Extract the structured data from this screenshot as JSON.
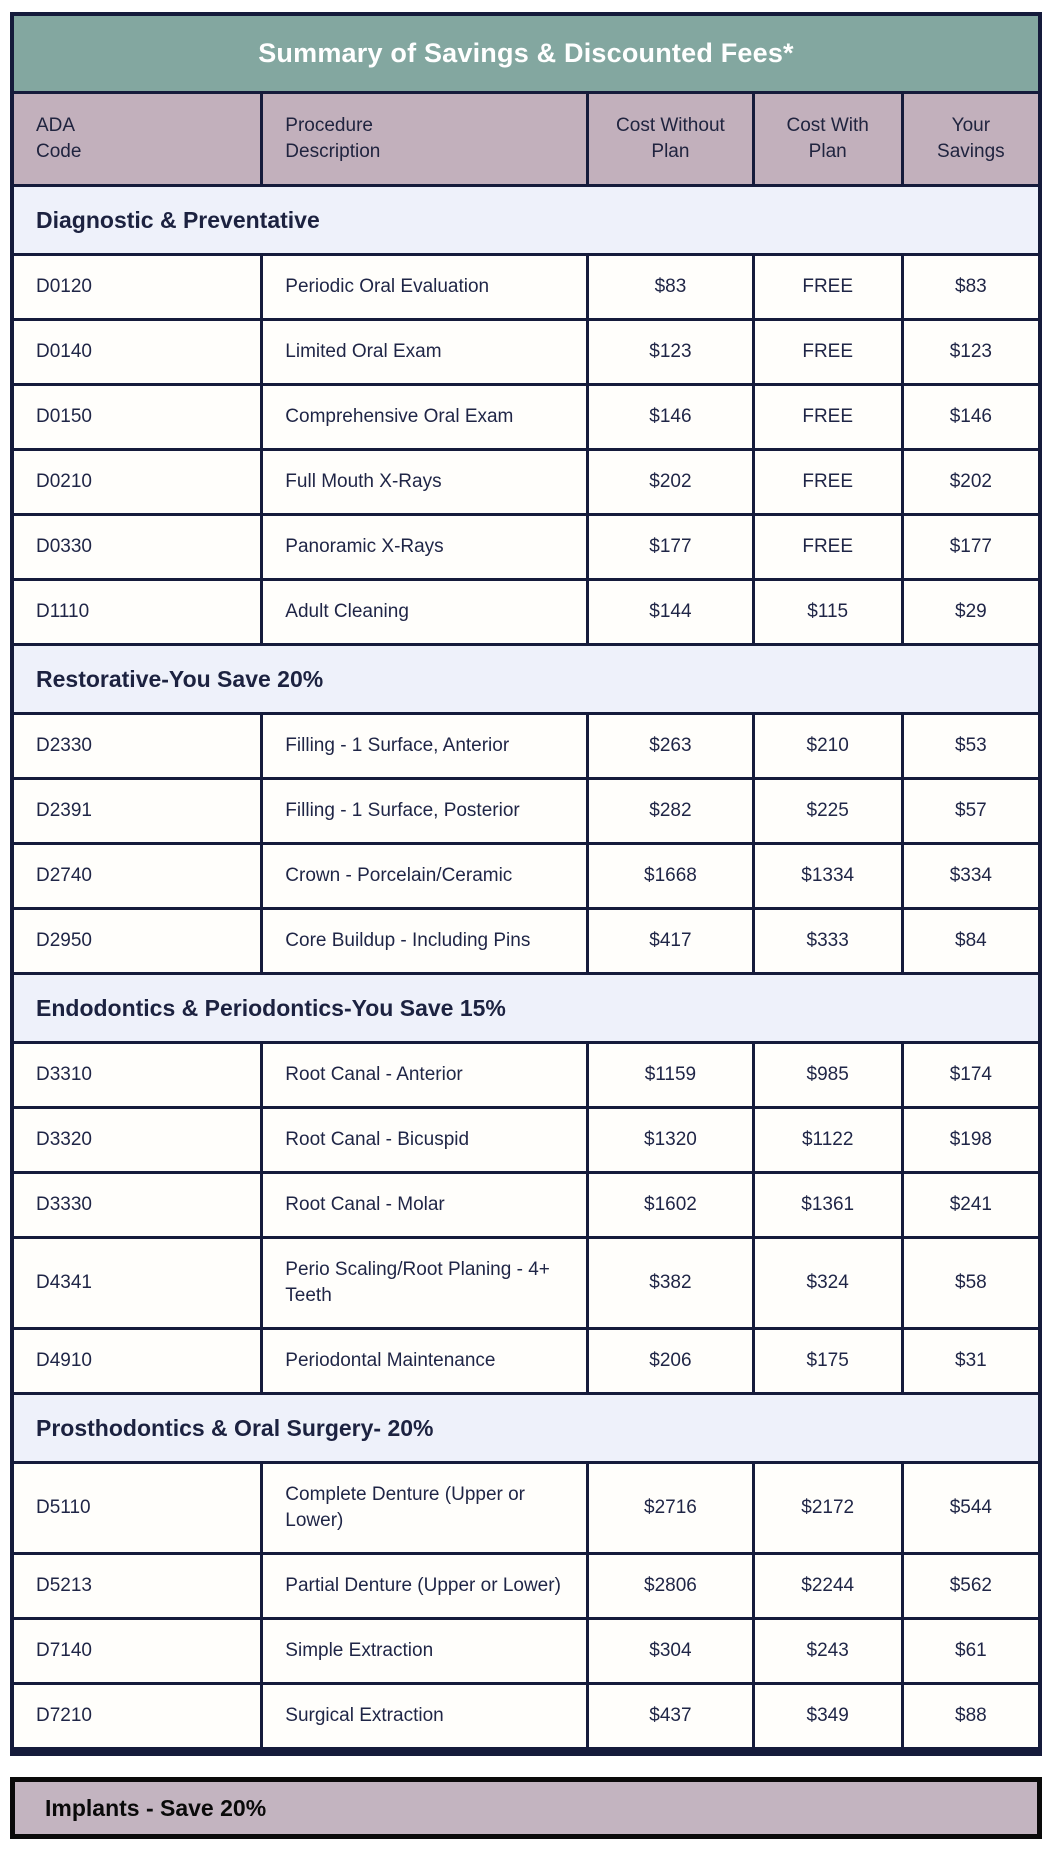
{
  "table": {
    "title": "Summary of Savings & Discounted Fees*",
    "columns": [
      "ADA\nCode",
      "Procedure\nDescription",
      "Cost Without\nPlan",
      "Cost With\nPlan",
      "Your\nSavings"
    ],
    "sections": [
      {
        "label": "Diagnostic & Preventative",
        "rows": [
          [
            "D0120",
            "Periodic Oral Evaluation",
            "$83",
            "FREE",
            "$83"
          ],
          [
            "D0140",
            "Limited Oral Exam",
            "$123",
            "FREE",
            "$123"
          ],
          [
            "D0150",
            "Comprehensive Oral Exam",
            "$146",
            "FREE",
            "$146"
          ],
          [
            "D0210",
            "Full Mouth X-Rays",
            "$202",
            "FREE",
            "$202"
          ],
          [
            "D0330",
            "Panoramic X-Rays",
            "$177",
            "FREE",
            "$177"
          ],
          [
            "D1110",
            "Adult Cleaning",
            "$144",
            "$115",
            "$29"
          ]
        ]
      },
      {
        "label": "Restorative-You Save 20%",
        "rows": [
          [
            "D2330",
            "Filling - 1 Surface, Anterior",
            "$263",
            "$210",
            "$53"
          ],
          [
            "D2391",
            "Filling - 1 Surface, Posterior",
            "$282",
            "$225",
            "$57"
          ],
          [
            "D2740",
            "Crown - Porcelain/Ceramic",
            "$1668",
            "$1334",
            "$334"
          ],
          [
            "D2950",
            "Core Buildup - Including Pins",
            "$417",
            "$333",
            "$84"
          ]
        ]
      },
      {
        "label": "Endodontics & Periodontics-You Save 15%",
        "rows": [
          [
            "D3310",
            "Root Canal - Anterior",
            "$1159",
            "$985",
            "$174"
          ],
          [
            "D3320",
            "Root Canal - Bicuspid",
            "$1320",
            "$1122",
            "$198"
          ],
          [
            "D3330",
            "Root Canal - Molar",
            "$1602",
            "$1361",
            "$241"
          ],
          [
            "D4341",
            "Perio Scaling/Root Planing - 4+ Teeth",
            "$382",
            "$324",
            "$58"
          ],
          [
            "D4910",
            "Periodontal Maintenance",
            "$206",
            "$175",
            "$31"
          ]
        ]
      },
      {
        "label": "Prosthodontics & Oral Surgery- 20%",
        "rows": [
          [
            "D5110",
            "Complete Denture (Upper or Lower)",
            "$2716",
            "$2172",
            "$544"
          ],
          [
            "D5213",
            "Partial Denture (Upper or Lower)",
            "$2806",
            "$2244",
            "$562"
          ],
          [
            "D7140",
            "Simple Extraction",
            "$304",
            "$243",
            "$61"
          ],
          [
            "D7210",
            "Surgical Extraction",
            "$437",
            "$349",
            "$88"
          ]
        ]
      }
    ]
  },
  "implants": {
    "label": "Implants - Save 20%"
  },
  "colors": {
    "title_bar": "#83a7a0",
    "column_header": "#c2b0bc",
    "section_header": "#eef1fa",
    "row_background": "#fffefb",
    "table_border": "#151b3b",
    "text": "#1f2546",
    "implants_banner": "#c3b4c0",
    "implants_border": "#0a0a0a"
  }
}
